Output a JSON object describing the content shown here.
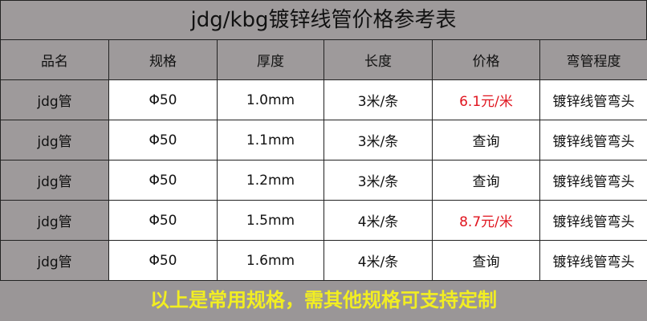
{
  "title": "jdg/kbg镀锌线管价格参考表",
  "headers": [
    "品名",
    "规格",
    "厚度",
    "长度",
    "价格",
    "弯管程度"
  ],
  "rows": [
    [
      "jdg管",
      "Φ50",
      "1.0mm",
      "3米/条",
      "6.1元/米",
      "镀锌线管弯头"
    ],
    [
      "jdg管",
      "Φ50",
      "1.1mm",
      "3米/条",
      "查询",
      "镀锌线管弯头"
    ],
    [
      "jdg管",
      "Φ50",
      "1.2mm",
      "3米/条",
      "查询",
      "镀锌线管弯头"
    ],
    [
      "jdg管",
      "Φ50",
      "1.5mm",
      "4米/条",
      "8.7元/米",
      "镀锌线管弯头"
    ],
    [
      "jdg管",
      "Φ50",
      "1.6mm",
      "4米/条",
      "查询",
      "镀锌线管弯头"
    ]
  ],
  "footer": "以上是常用规格，需其他规格可支持定制",
  "colors": {
    "background": "#9e9a9b",
    "price": "#e0141e",
    "footer_text": "#f2ee22"
  }
}
